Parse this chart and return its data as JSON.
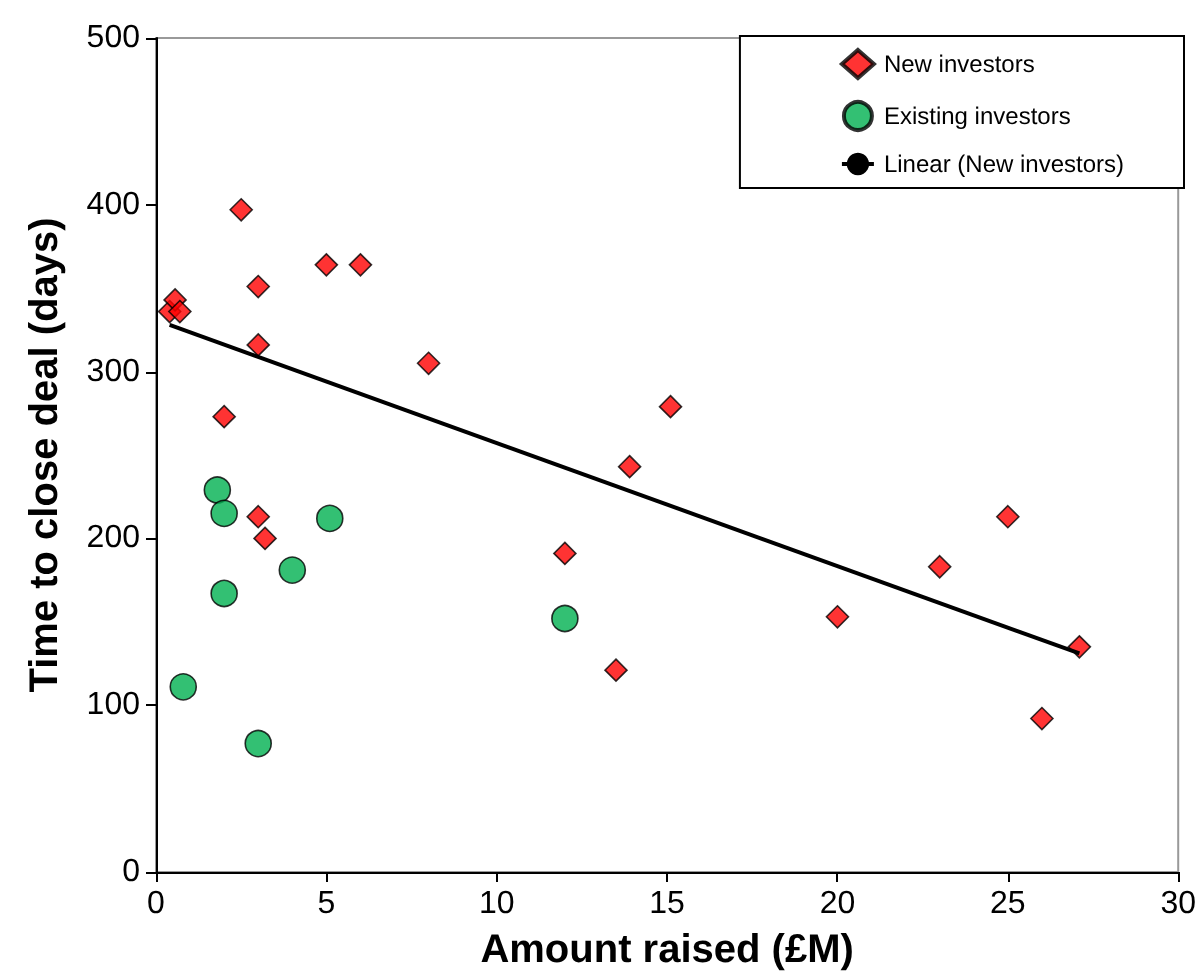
{
  "chart_data": {
    "type": "scatter",
    "xlabel": "Amount raised (£M)",
    "ylabel": "Time to close deal (days)",
    "xlim": [
      0,
      30
    ],
    "xticks": [
      0,
      5,
      10,
      15,
      20,
      25,
      30
    ],
    "ylim": [
      0,
      500
    ],
    "yticks": [
      0,
      100,
      200,
      300,
      400,
      500
    ],
    "grid": false,
    "legend": "top right",
    "series": [
      {
        "name": "New investors",
        "color": "#ff0000",
        "marker": "diamond",
        "x": [
          0.4,
          0.56,
          0.7,
          2.5,
          3.0,
          3.0,
          2.0,
          3.0,
          3.2,
          5.0,
          6.0,
          8.0,
          15.1,
          13.9,
          12.0,
          13.5,
          20,
          23,
          25,
          26,
          27.1
        ],
        "values": [
          336,
          343,
          336,
          397,
          351,
          316,
          273,
          213,
          200,
          364,
          364,
          305,
          279,
          243,
          191,
          121,
          153,
          183,
          213,
          92,
          135
        ]
      },
      {
        "name": "Existing investors",
        "color": "#00b050",
        "marker": "circle",
        "x": [
          1.8,
          2.0,
          2.0,
          0.8,
          3.0,
          4.0,
          5.1,
          12.0
        ],
        "values": [
          229,
          215,
          167,
          111,
          77,
          181,
          212,
          152
        ]
      },
      {
        "name": "Linear (New investors)",
        "type": "line",
        "color": "#000000",
        "marker": "none",
        "x": [
          0.4,
          27.1
        ],
        "values": [
          328,
          131
        ]
      }
    ]
  }
}
